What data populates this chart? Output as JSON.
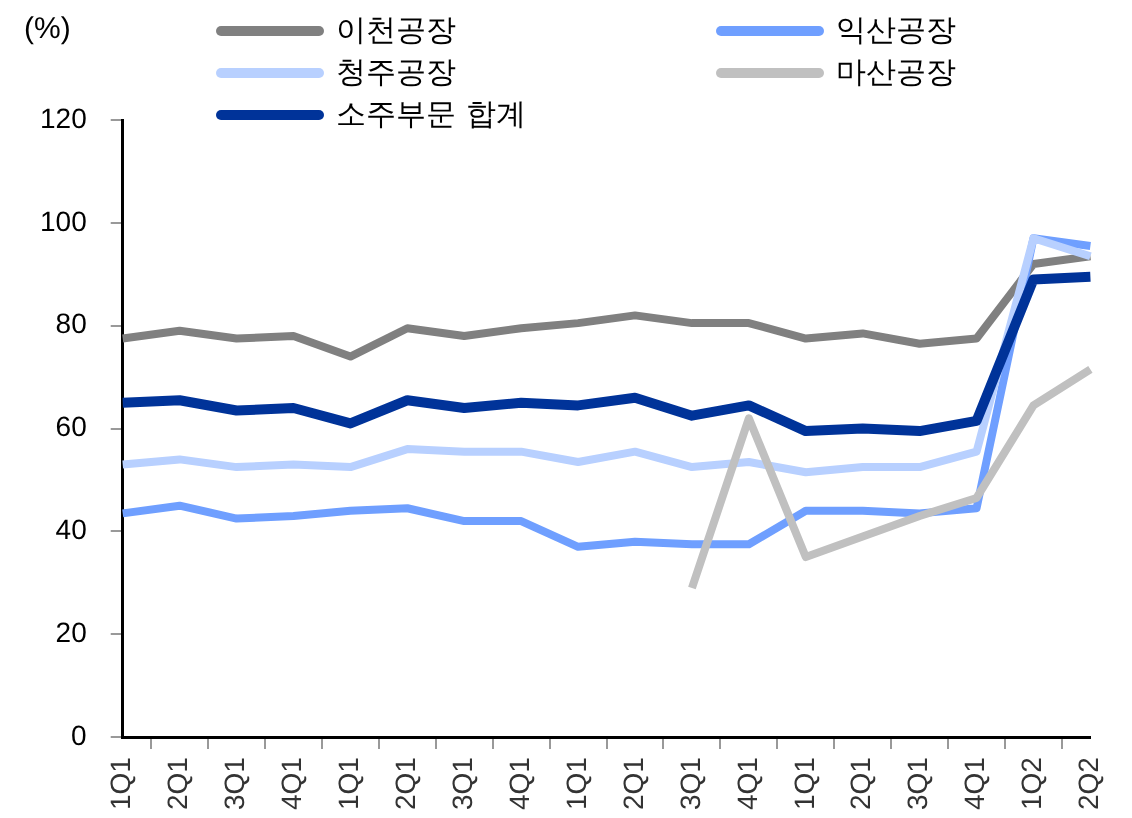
{
  "chart_data": {
    "type": "line",
    "ylabel": "(%)",
    "categories": [
      "1Q1",
      "2Q1",
      "3Q1",
      "4Q1",
      "1Q1",
      "2Q1",
      "3Q1",
      "4Q1",
      "1Q1",
      "2Q1",
      "3Q1",
      "4Q1",
      "1Q1",
      "2Q1",
      "3Q1",
      "4Q1",
      "1Q2",
      "2Q2"
    ],
    "series": [
      {
        "name": "이천공장",
        "color": "#808080",
        "values": [
          77.5,
          79,
          77.5,
          78,
          74,
          79.5,
          78,
          79.5,
          80.5,
          82,
          80.5,
          80.5,
          77.5,
          78.5,
          76.5,
          77.5,
          92,
          93.5
        ]
      },
      {
        "name": "익산공장",
        "color": "#6f9fff",
        "values": [
          43.5,
          45,
          42.5,
          43,
          44,
          44.5,
          42,
          42,
          37,
          38,
          37.5,
          37.5,
          44,
          44,
          43.5,
          44.5,
          97,
          95.5
        ]
      },
      {
        "name": "청주공장",
        "color": "#b8d0ff",
        "values": [
          53,
          54,
          52.5,
          53,
          52.5,
          56,
          55.5,
          55.5,
          53.5,
          55.5,
          52.5,
          53.5,
          51.5,
          52.5,
          52.5,
          55.5,
          97,
          93.5
        ]
      },
      {
        "name": "마산공장",
        "color": "#c0c0c0",
        "values": [
          null,
          null,
          null,
          null,
          null,
          null,
          null,
          null,
          null,
          null,
          29,
          62,
          35,
          39,
          43,
          46.5,
          64.5,
          71.5
        ]
      },
      {
        "name": "소주부문 합계",
        "color": "#003399",
        "values": [
          65,
          65.5,
          63.5,
          64,
          61,
          65.5,
          64,
          65,
          64.5,
          66,
          62.5,
          64.5,
          59.5,
          60,
          59.5,
          61.5,
          89,
          89.5
        ]
      }
    ],
    "ylim": [
      0,
      120
    ],
    "yticks": [
      0,
      20,
      40,
      60,
      80,
      100,
      120
    ],
    "grid": false,
    "legend": "top",
    "marker": "none",
    "line_style": "solid"
  }
}
